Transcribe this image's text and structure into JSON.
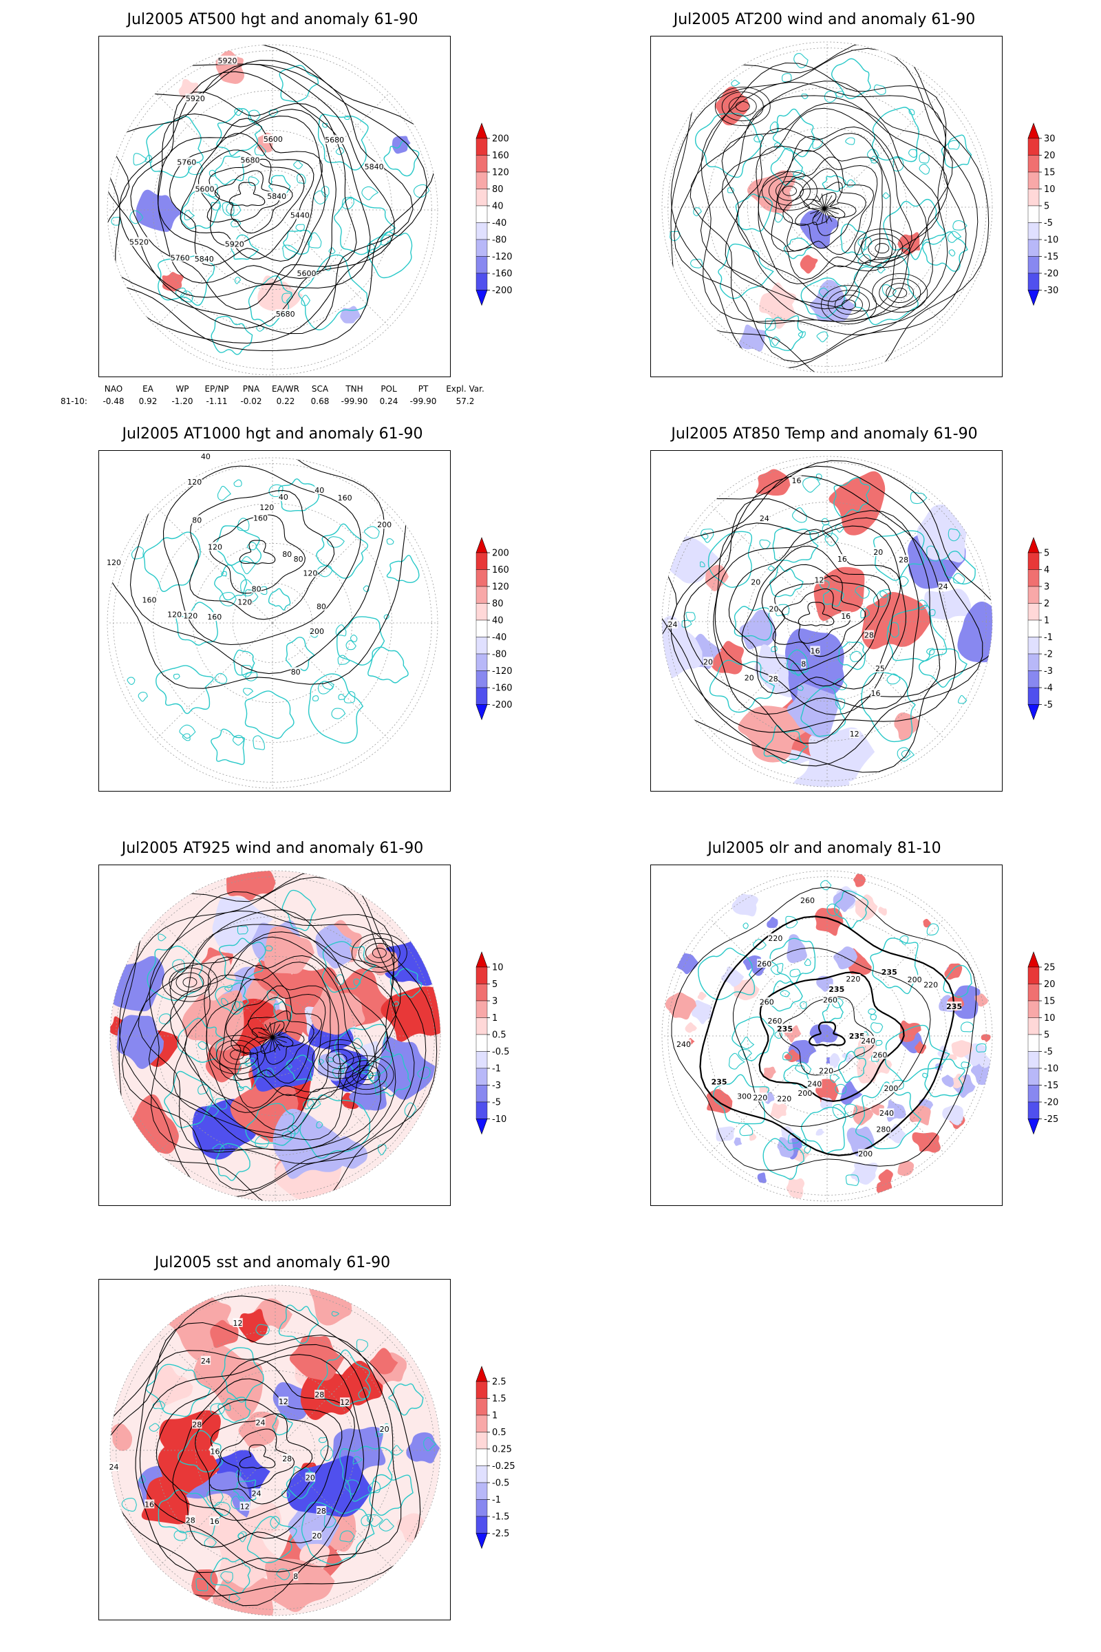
{
  "panels": [
    {
      "title": "Jul2005 AT500 hgt and anomaly 61-90",
      "variant": "hgt500",
      "contour_labels": [
        "5840",
        "5760",
        "5680",
        "5600",
        "5600",
        "5680",
        "5920",
        "5920",
        "5440",
        "5520",
        "5600",
        "5680",
        "5760",
        "5840",
        "5840",
        "5920"
      ],
      "colorbar": {
        "levels": [
          "200",
          "160",
          "120",
          "80",
          "40",
          "-40",
          "-80",
          "-120",
          "-160",
          "-200"
        ]
      }
    },
    {
      "title": "Jul2005 AT200 wind and anomaly 61-90",
      "variant": "wind200",
      "contour_labels": [],
      "colorbar": {
        "levels": [
          "30",
          "20",
          "15",
          "10",
          "5",
          "-5",
          "-10",
          "-15",
          "-20",
          "-30"
        ]
      }
    },
    {
      "title": "Jul2005 AT1000 hgt and anomaly 61-90",
      "variant": "hgt1000",
      "contour_labels": [
        "80",
        "120",
        "160",
        "200",
        "120",
        "160",
        "120",
        "40",
        "120",
        "160",
        "40",
        "80",
        "80",
        "200",
        "160",
        "120",
        "80",
        "120",
        "40",
        "80",
        "120",
        "80",
        "120",
        "120"
      ],
      "colorbar": {
        "levels": [
          "200",
          "160",
          "120",
          "80",
          "40",
          "-40",
          "-80",
          "-120",
          "-160",
          "-200"
        ]
      }
    },
    {
      "title": "Jul2005 AT850 Temp and anomaly 61-90",
      "variant": "temp850",
      "contour_labels": [
        "16",
        "20",
        "12",
        "16",
        "20",
        "28",
        "8",
        "24",
        "28",
        "20",
        "16",
        "12",
        "20",
        "24",
        "28",
        "16",
        "25",
        "24",
        "20",
        "16"
      ],
      "colorbar": {
        "levels": [
          "5",
          "4",
          "3",
          "2",
          "1",
          "-1",
          "-2",
          "-3",
          "-4",
          "-5"
        ]
      }
    },
    {
      "title": "Jul2005 AT925 wind and anomaly 61-90",
      "variant": "wind925",
      "contour_labels": [],
      "colorbar": {
        "levels": [
          "10",
          "5",
          "3",
          "1",
          "0.5",
          "-0.5",
          "-1",
          "-3",
          "-5",
          "-10"
        ]
      }
    },
    {
      "title": "Jul2005 olr and anomaly 81-10",
      "variant": "olr",
      "contour_labels": [
        "235",
        "220",
        "260",
        "240",
        "235",
        "200",
        "240",
        "220",
        "260",
        "235",
        "220",
        "200",
        "260",
        "235",
        "220",
        "260",
        "200",
        "240",
        "235",
        "220",
        "260",
        "240",
        "300",
        "235",
        "280",
        "260",
        "220",
        "200"
      ],
      "colorbar": {
        "levels": [
          "25",
          "20",
          "15",
          "10",
          "5",
          "-5",
          "-10",
          "-15",
          "-20",
          "-25"
        ]
      }
    },
    {
      "title": "Jul2005 sst and anomaly 61-90",
      "variant": "sst",
      "contour_labels": [
        "28",
        "28",
        "24",
        "20",
        "16",
        "12",
        "12",
        "24",
        "20",
        "16",
        "12",
        "8",
        "28",
        "20",
        "16",
        "12",
        "28",
        "24",
        "28",
        "24"
      ],
      "colorbar": {
        "levels": [
          "2.5",
          "1.5",
          "1",
          "0.5",
          "0.25",
          "-0.25",
          "-0.5",
          "-1",
          "-1.5",
          "-2.5"
        ]
      }
    }
  ],
  "indices": {
    "header": [
      "",
      "NAO",
      "EA",
      "WP",
      "EP/NP",
      "PNA",
      "EA/WR",
      "SCA",
      "TNH",
      "POL",
      "PT",
      "Expl. Var."
    ],
    "row": [
      "81-10:",
      "-0.48",
      "0.92",
      "-1.20",
      "-1.11",
      "-0.02",
      "0.22",
      "0.68",
      "-99.90",
      "0.24",
      "-99.90",
      "57.2"
    ]
  },
  "colors": {
    "coast": "#28c8c8",
    "contour": "#000000",
    "grid": "#9a9a9a",
    "pos": [
      "#ffd8d8",
      "#f8a8a8",
      "#f07070",
      "#e83838",
      "#e00000"
    ],
    "neg": [
      "#e0e0ff",
      "#b8b8f8",
      "#8888f0",
      "#5050ee",
      "#1010ff"
    ]
  }
}
